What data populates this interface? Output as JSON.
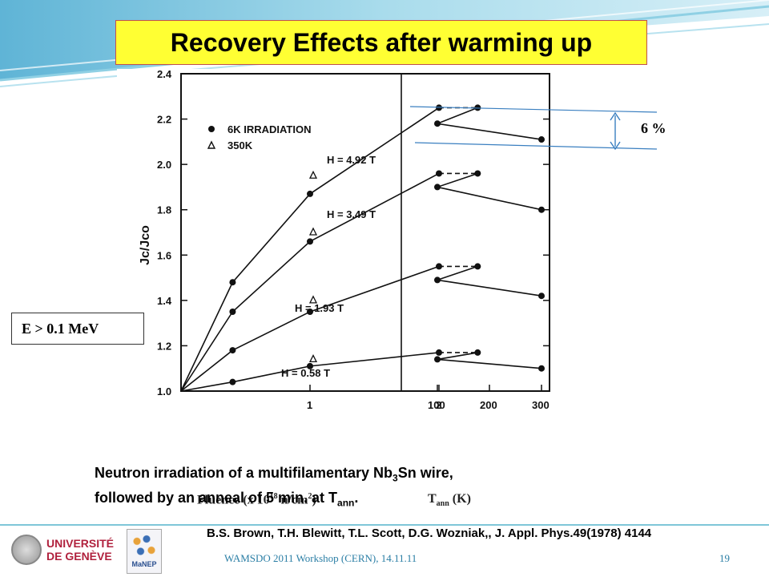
{
  "slide": {
    "title": "Recovery Effects after warming up",
    "energy_note": "E > 0.1 MeV",
    "percent_note": "6 %",
    "fluence_label": "Fluence (x 10",
    "fluence_exp": "18",
    "fluence_unit": " n/cm",
    "fluence_unit_exp": "2",
    "fluence_close": ")",
    "tann_label": "T",
    "tann_sub": "ann",
    "tann_unit": " (K)",
    "caption_line1_a": "Neutron irradiation of a multifilamentary Nb",
    "caption_line1_sub": "3",
    "caption_line1_b": "Sn wire,",
    "caption_line2_a": "followed by an anneal of 5 min. at T",
    "caption_line2_sub": "ann",
    "caption_line2_b": ".",
    "reference": "B.S. Brown, T.H. Blewitt, T.L. Scott, D.G. Wozniak,, J. Appl. Phys.49(1978) 4144",
    "footer": "WAMSDO 2011 Workshop (CERN), 14.11.11",
    "page_number": "19",
    "logo_unige": "UNIVERSITÉ DE GENÈVE",
    "logo_manep": "MaNEP"
  },
  "colors": {
    "title_bg": "#ffff33",
    "title_border": "#c0504d",
    "accent_blue": "#3a9ad9",
    "footer_text": "#2a7ea5"
  },
  "chart_data": {
    "type": "line",
    "ylabel": "Jc/Jco",
    "ylim": [
      1.0,
      2.4
    ],
    "yticks": [
      "1.0",
      "1.2",
      "1.4",
      "1.6",
      "1.8",
      "2.0",
      "2.2",
      "2.4"
    ],
    "xticks_fluence": [
      "1",
      "2"
    ],
    "xticks_tann": [
      "100",
      "200",
      "300"
    ],
    "legend": [
      {
        "marker": "filled-circle",
        "label": "6K IRRADIATION"
      },
      {
        "marker": "open-triangle",
        "label": "350K"
      }
    ],
    "series": [
      {
        "name": "H = 4.92 T",
        "fluence": [
          0,
          0.4,
          1,
          2,
          2.3
        ],
        "fluence_values": [
          1.0,
          1.48,
          1.87,
          2.25,
          2.25
        ],
        "tann": [
          100,
          300
        ],
        "tann_values": [
          2.18,
          2.11
        ],
        "triangles": [
          {
            "fluence": 1,
            "value": 1.95
          }
        ]
      },
      {
        "name": "H = 3.49 T",
        "fluence": [
          0,
          0.4,
          1,
          2,
          2.3
        ],
        "fluence_values": [
          1.0,
          1.35,
          1.66,
          1.96,
          1.96
        ],
        "tann": [
          100,
          300
        ],
        "tann_values": [
          1.9,
          1.8
        ],
        "triangles": [
          {
            "fluence": 1,
            "value": 1.7
          }
        ]
      },
      {
        "name": "H = 1.93 T",
        "fluence": [
          0,
          0.4,
          1,
          2,
          2.3
        ],
        "fluence_values": [
          1.0,
          1.18,
          1.35,
          1.55,
          1.55
        ],
        "tann": [
          100,
          300
        ],
        "tann_values": [
          1.49,
          1.42
        ],
        "triangles": [
          {
            "fluence": 1,
            "value": 1.4
          }
        ]
      },
      {
        "name": "H = 0.58 T",
        "fluence": [
          0,
          0.4,
          1,
          2,
          2.3
        ],
        "fluence_values": [
          1.0,
          1.04,
          1.11,
          1.17,
          1.17
        ],
        "tann": [
          100,
          300
        ],
        "tann_values": [
          1.14,
          1.1
        ],
        "triangles": [
          {
            "fluence": 1,
            "value": 1.14
          }
        ]
      }
    ]
  }
}
